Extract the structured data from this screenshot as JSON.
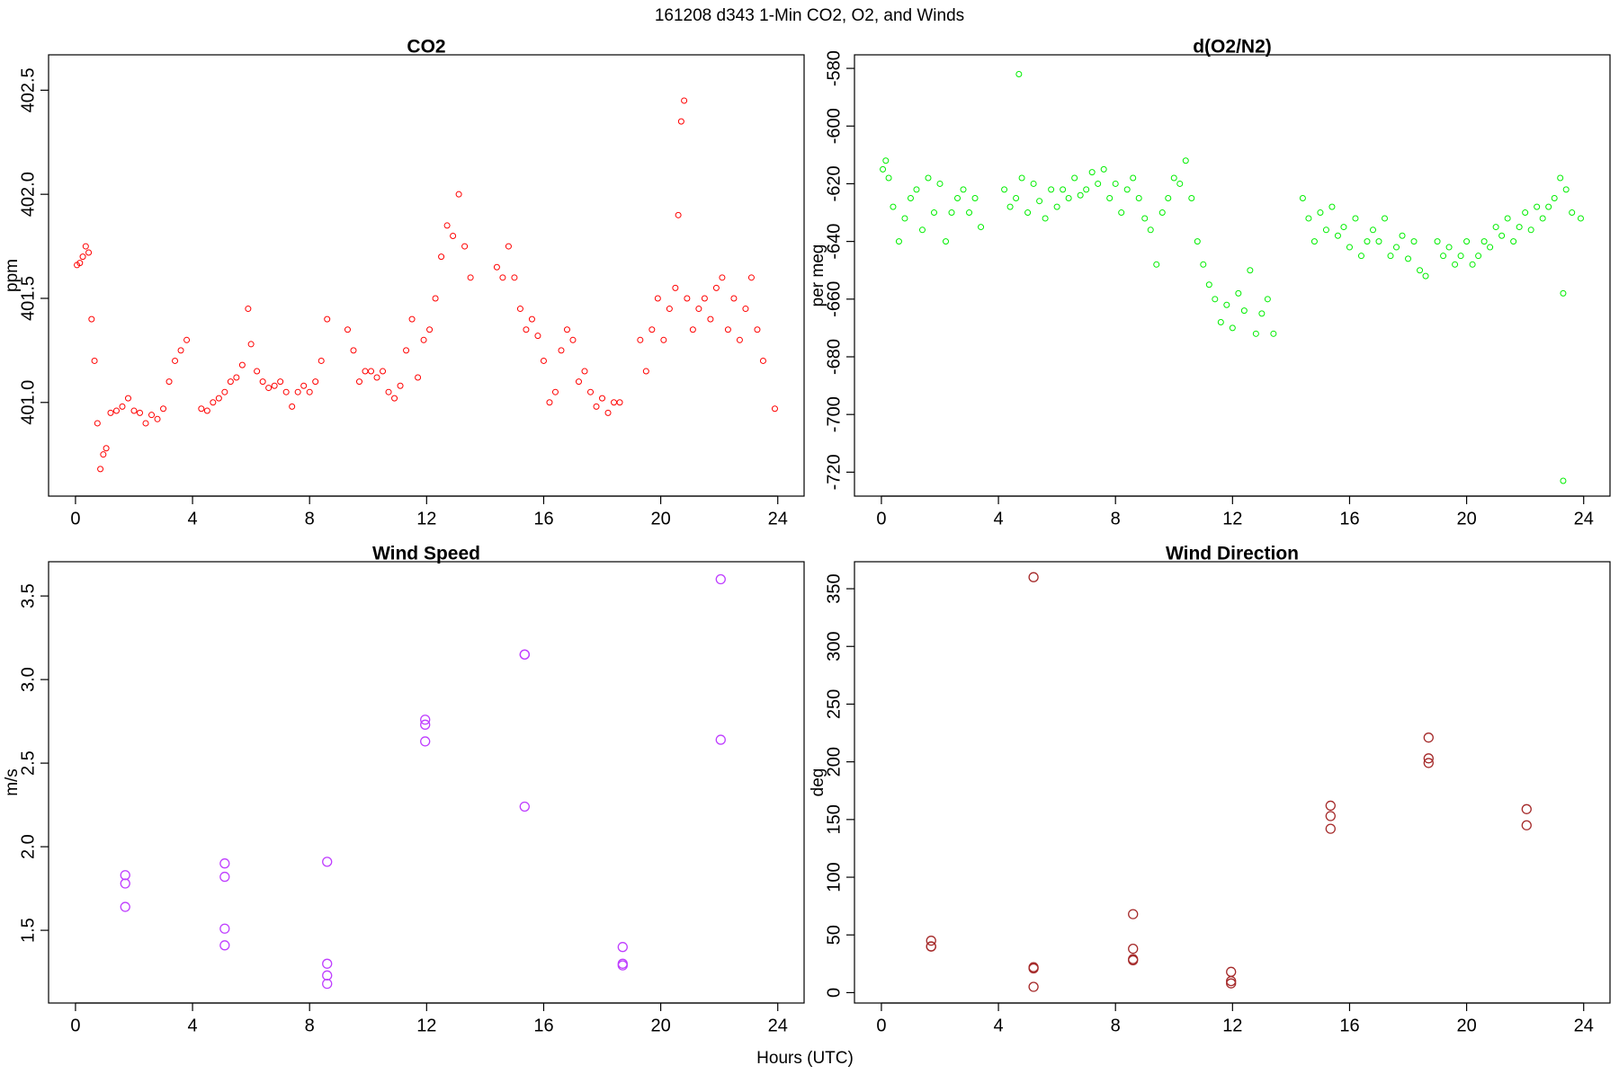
{
  "title": "161208   d343   1-Min CO2, O2, and Winds",
  "xlabel": "Hours (UTC)",
  "chart_data": [
    {
      "type": "scatter",
      "title": "CO2",
      "ylabel": "ppm",
      "color": "#ff0000",
      "xlim": [
        -0.92,
        24.9
      ],
      "ylim": [
        400.55,
        402.67
      ],
      "xticks": [
        0,
        4,
        8,
        12,
        16,
        20,
        24
      ],
      "yticks": [
        {
          "value": 401,
          "label": "401.0"
        },
        401.5,
        {
          "value": 402,
          "label": "402.0"
        },
        402.5
      ],
      "x": [
        0.05,
        0.15,
        0.25,
        0.35,
        0.45,
        0.55,
        0.65,
        0.75,
        0.85,
        0.95,
        1.05,
        1.2,
        1.4,
        1.6,
        1.8,
        2.0,
        2.2,
        2.4,
        2.6,
        2.8,
        3.0,
        3.2,
        3.4,
        3.6,
        3.8,
        4.3,
        4.5,
        4.7,
        4.9,
        5.1,
        5.3,
        5.5,
        5.7,
        5.9,
        6.0,
        6.2,
        6.4,
        6.6,
        6.8,
        7.0,
        7.2,
        7.4,
        7.6,
        7.8,
        8.0,
        8.2,
        8.4,
        8.6,
        9.3,
        9.5,
        9.7,
        9.9,
        10.1,
        10.3,
        10.5,
        10.7,
        10.9,
        11.1,
        11.3,
        11.5,
        11.7,
        11.9,
        12.1,
        12.3,
        12.5,
        12.7,
        12.9,
        13.1,
        13.3,
        13.5,
        14.4,
        14.6,
        14.8,
        15.0,
        15.2,
        15.4,
        15.6,
        15.8,
        16.0,
        16.2,
        16.4,
        16.6,
        16.8,
        17.0,
        17.2,
        17.4,
        17.6,
        17.8,
        18.0,
        18.2,
        18.4,
        18.6,
        19.3,
        19.5,
        19.7,
        19.9,
        20.1,
        20.3,
        20.5,
        20.6,
        20.7,
        20.8,
        20.9,
        21.1,
        21.3,
        21.5,
        21.7,
        21.9,
        22.1,
        22.3,
        22.5,
        22.7,
        22.9,
        23.1,
        23.3,
        23.5,
        23.9
      ],
      "values": [
        401.66,
        401.67,
        401.7,
        401.75,
        401.72,
        401.4,
        401.2,
        400.9,
        400.68,
        400.75,
        400.78,
        400.95,
        400.96,
        400.98,
        401.02,
        400.96,
        400.95,
        400.9,
        400.94,
        400.92,
        400.97,
        401.1,
        401.2,
        401.25,
        401.3,
        400.97,
        400.96,
        401.0,
        401.02,
        401.05,
        401.1,
        401.12,
        401.18,
        401.45,
        401.28,
        401.15,
        401.1,
        401.07,
        401.08,
        401.1,
        401.05,
        400.98,
        401.05,
        401.08,
        401.05,
        401.1,
        401.2,
        401.4,
        401.35,
        401.25,
        401.1,
        401.15,
        401.15,
        401.12,
        401.15,
        401.05,
        401.02,
        401.08,
        401.25,
        401.4,
        401.12,
        401.3,
        401.35,
        401.5,
        401.7,
        401.85,
        401.8,
        402.0,
        401.75,
        401.6,
        401.65,
        401.6,
        401.75,
        401.6,
        401.45,
        401.35,
        401.4,
        401.32,
        401.2,
        401.0,
        401.05,
        401.25,
        401.35,
        401.3,
        401.1,
        401.15,
        401.05,
        400.98,
        401.02,
        400.95,
        401.0,
        401.0,
        401.3,
        401.15,
        401.35,
        401.5,
        401.3,
        401.45,
        401.55,
        401.9,
        402.35,
        402.45,
        401.5,
        401.35,
        401.45,
        401.5,
        401.4,
        401.55,
        401.6,
        401.35,
        401.5,
        401.3,
        401.45,
        401.6,
        401.35,
        401.2,
        400.97
      ]
    },
    {
      "type": "scatter",
      "title": "d(O2/N2)",
      "ylabel": "per meg",
      "color": "#00ee00",
      "xlim": [
        -0.92,
        24.9
      ],
      "ylim": [
        -728.3,
        -575.3
      ],
      "xticks": [
        0,
        4,
        8,
        12,
        16,
        20,
        24
      ],
      "yticks": [
        -720,
        -700,
        -680,
        -660,
        -640,
        -620,
        -600,
        -580
      ],
      "x": [
        0.05,
        0.15,
        0.25,
        0.4,
        0.6,
        0.8,
        1.0,
        1.2,
        1.4,
        1.6,
        1.8,
        2.0,
        2.2,
        2.4,
        2.6,
        2.8,
        3.0,
        3.2,
        3.4,
        4.2,
        4.4,
        4.6,
        4.7,
        4.8,
        5.0,
        5.2,
        5.4,
        5.6,
        5.8,
        6.0,
        6.2,
        6.4,
        6.6,
        6.8,
        7.0,
        7.2,
        7.4,
        7.6,
        7.8,
        8.0,
        8.2,
        8.4,
        8.6,
        8.8,
        9.0,
        9.2,
        9.4,
        9.6,
        9.8,
        10.0,
        10.2,
        10.4,
        10.6,
        10.8,
        11.0,
        11.2,
        11.4,
        11.6,
        11.8,
        12.0,
        12.2,
        12.4,
        12.6,
        12.8,
        13.0,
        13.2,
        13.4,
        14.4,
        14.6,
        14.8,
        15.0,
        15.2,
        15.4,
        15.6,
        15.8,
        16.0,
        16.2,
        16.4,
        16.6,
        16.8,
        17.0,
        17.2,
        17.4,
        17.6,
        17.8,
        18.0,
        18.2,
        18.4,
        18.6,
        19.0,
        19.2,
        19.4,
        19.6,
        19.8,
        20.0,
        20.2,
        20.4,
        20.6,
        20.8,
        21.0,
        21.2,
        21.4,
        21.6,
        21.8,
        22.0,
        22.2,
        22.4,
        22.6,
        22.8,
        23.0,
        23.2,
        23.3,
        23.3,
        23.4,
        23.6,
        23.9
      ],
      "values": [
        -615,
        -612,
        -618,
        -628,
        -640,
        -632,
        -625,
        -622,
        -636,
        -618,
        -630,
        -620,
        -640,
        -630,
        -625,
        -622,
        -630,
        -625,
        -635,
        -622,
        -628,
        -625,
        -582,
        -618,
        -630,
        -620,
        -626,
        -632,
        -622,
        -628,
        -622,
        -625,
        -618,
        -624,
        -622,
        -616,
        -620,
        -615,
        -625,
        -620,
        -630,
        -622,
        -618,
        -625,
        -632,
        -636,
        -648,
        -630,
        -625,
        -618,
        -620,
        -612,
        -625,
        -640,
        -648,
        -655,
        -660,
        -668,
        -662,
        -670,
        -658,
        -664,
        -650,
        -672,
        -665,
        -660,
        -672,
        -625,
        -632,
        -640,
        -630,
        -636,
        -628,
        -638,
        -635,
        -642,
        -632,
        -645,
        -640,
        -636,
        -640,
        -632,
        -645,
        -642,
        -638,
        -646,
        -640,
        -650,
        -652,
        -640,
        -645,
        -642,
        -648,
        -645,
        -640,
        -648,
        -645,
        -640,
        -642,
        -635,
        -638,
        -632,
        -640,
        -635,
        -630,
        -636,
        -628,
        -632,
        -628,
        -625,
        -618,
        -658,
        -723,
        -622,
        -630,
        -632
      ]
    },
    {
      "type": "scatter",
      "title": "Wind Speed",
      "ylabel": "m/s",
      "color": "#bf3eff",
      "xlim": [
        -0.92,
        24.9
      ],
      "ylim": [
        1.065,
        3.705
      ],
      "xticks": [
        0,
        4,
        8,
        12,
        16,
        20,
        24
      ],
      "yticks": [
        1.5,
        {
          "value": 2,
          "label": "2.0"
        },
        2.5,
        {
          "value": 3,
          "label": "3.0"
        },
        3.5
      ],
      "x": [
        1.7,
        1.7,
        1.7,
        5.1,
        5.1,
        5.1,
        5.1,
        8.6,
        8.6,
        8.6,
        8.6,
        11.95,
        11.95,
        11.95,
        15.35,
        15.35,
        15.35,
        18.7,
        18.7,
        18.7,
        22.05,
        22.05
      ],
      "values": [
        1.83,
        1.78,
        1.64,
        1.9,
        1.82,
        1.51,
        1.41,
        1.91,
        1.3,
        1.23,
        1.18,
        2.76,
        2.73,
        2.63,
        3.15,
        3.15,
        2.24,
        1.4,
        1.3,
        1.29,
        3.6,
        2.64
      ]
    },
    {
      "type": "scatter",
      "title": "Wind Direction",
      "ylabel": "deg",
      "color": "#a52a2a",
      "xlim": [
        -0.92,
        24.9
      ],
      "ylim": [
        -9,
        373.4
      ],
      "xticks": [
        0,
        4,
        8,
        12,
        16,
        20,
        24
      ],
      "yticks": [
        0,
        50,
        100,
        150,
        200,
        250,
        300,
        350
      ],
      "x": [
        1.7,
        1.7,
        1.7,
        5.2,
        5.2,
        5.2,
        5.2,
        8.6,
        8.6,
        8.6,
        8.6,
        11.95,
        11.95,
        11.95,
        15.35,
        15.35,
        15.35,
        18.7,
        18.7,
        18.7,
        22.05,
        22.05
      ],
      "values": [
        45,
        40,
        40,
        360,
        22,
        21,
        5,
        68,
        38,
        29,
        28,
        18,
        10,
        8,
        162,
        153,
        142,
        221,
        203,
        199,
        159,
        145
      ]
    }
  ]
}
